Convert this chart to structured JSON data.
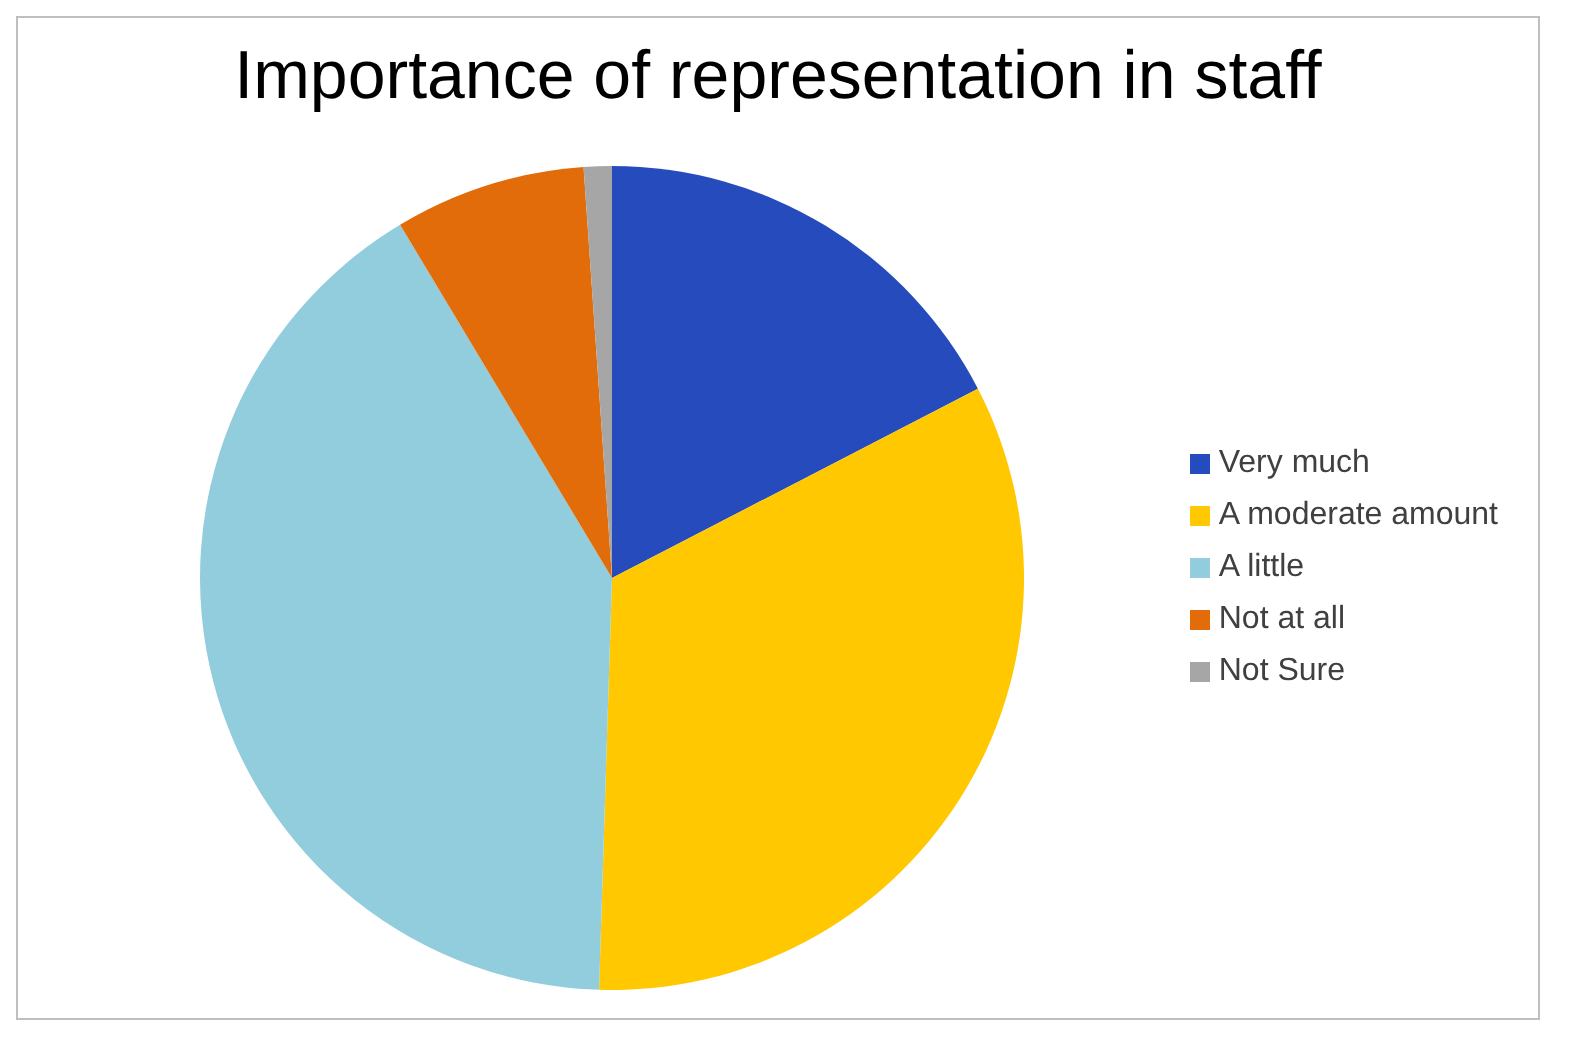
{
  "chart_data": {
    "type": "pie",
    "title": "Importance of representation in staff",
    "categories": [
      "Very much",
      "A moderate amount",
      "A little",
      "Not at all",
      "Not Sure"
    ],
    "values": [
      17.4,
      33.1,
      40.9,
      7.5,
      1.1
    ],
    "colors": [
      "#264bbd",
      "#ffc800",
      "#92cddd",
      "#e36c0a",
      "#a6a6a6"
    ],
    "legend": "right"
  }
}
